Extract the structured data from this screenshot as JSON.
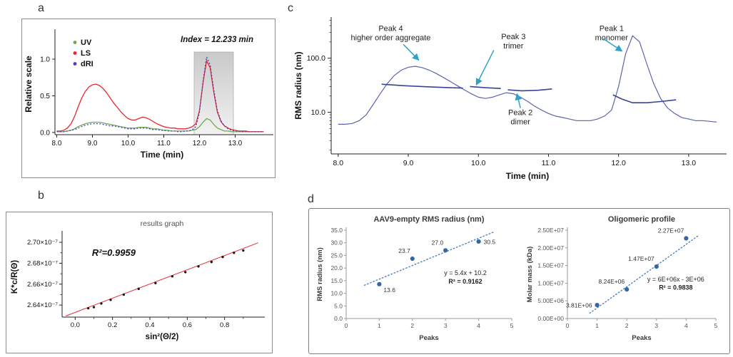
{
  "figure": {
    "panels": {
      "a": {
        "letter": "a"
      },
      "b": {
        "letter": "b"
      },
      "c": {
        "letter": "c"
      },
      "d": {
        "letter": "d"
      }
    }
  },
  "chart_data": [
    {
      "id": "a-sec-chromatogram",
      "panel": "a",
      "type": "line",
      "title": "",
      "xlabel": "Time (min)",
      "ylabel": "Relative scale",
      "xlim": [
        7.95,
        13.95
      ],
      "ylim": [
        -0.03,
        1.35
      ],
      "xticks": [
        8.0,
        9.0,
        10.0,
        11.0,
        12.0,
        13.0
      ],
      "yticks": [
        0.0,
        0.5,
        1.0
      ],
      "legend": [
        "UV",
        "LS",
        "dRI"
      ],
      "legend_position": "top-left",
      "shaded_region": {
        "x0": 11.85,
        "x1": 12.95,
        "label": "Index = 12.233 min"
      },
      "x": [
        8.0,
        8.1,
        8.2,
        8.3,
        8.4,
        8.5,
        8.6,
        8.7,
        8.8,
        8.9,
        9.0,
        9.1,
        9.2,
        9.3,
        9.4,
        9.5,
        9.6,
        9.7,
        9.8,
        9.9,
        10.0,
        10.1,
        10.2,
        10.3,
        10.4,
        10.5,
        10.6,
        10.7,
        10.8,
        10.9,
        11.0,
        11.1,
        11.2,
        11.3,
        11.4,
        11.5,
        11.6,
        11.7,
        11.8,
        11.9,
        12.0,
        12.1,
        12.2,
        12.3,
        12.4,
        12.5,
        12.6,
        12.7,
        12.8,
        12.9,
        13.0,
        13.1,
        13.2,
        13.3,
        13.4,
        13.5,
        13.6,
        13.7,
        13.8
      ],
      "series": [
        {
          "name": "UV",
          "color": "#6fa84f",
          "dash": "",
          "values": [
            0.01,
            0.01,
            0.01,
            0.02,
            0.03,
            0.05,
            0.08,
            0.1,
            0.12,
            0.13,
            0.14,
            0.14,
            0.14,
            0.13,
            0.12,
            0.11,
            0.1,
            0.09,
            0.08,
            0.07,
            0.06,
            0.06,
            0.06,
            0.07,
            0.07,
            0.07,
            0.06,
            0.05,
            0.05,
            0.04,
            0.03,
            0.03,
            0.02,
            0.02,
            0.02,
            0.02,
            0.02,
            0.02,
            0.03,
            0.04,
            0.08,
            0.14,
            0.19,
            0.17,
            0.11,
            0.06,
            0.04,
            0.02,
            0.02,
            0.01,
            0.01,
            0.01,
            0.01,
            0.01,
            0.01,
            0.01,
            0.01,
            0.01,
            0.01
          ]
        },
        {
          "name": "LS",
          "color": "#e8262c",
          "dash": "",
          "values": [
            0.02,
            0.02,
            0.03,
            0.06,
            0.12,
            0.22,
            0.35,
            0.47,
            0.56,
            0.62,
            0.65,
            0.66,
            0.64,
            0.6,
            0.54,
            0.47,
            0.4,
            0.34,
            0.28,
            0.23,
            0.19,
            0.17,
            0.17,
            0.19,
            0.21,
            0.2,
            0.18,
            0.15,
            0.12,
            0.1,
            0.08,
            0.07,
            0.06,
            0.06,
            0.05,
            0.05,
            0.05,
            0.06,
            0.08,
            0.12,
            0.3,
            0.68,
            0.98,
            0.88,
            0.55,
            0.28,
            0.15,
            0.09,
            0.06,
            0.04,
            0.03,
            0.02,
            0.02,
            0.02,
            0.01,
            0.01,
            0.01,
            0.01,
            0.01
          ]
        },
        {
          "name": "dRI",
          "color": "#4343bd",
          "dash": "2,2.4",
          "values": [
            0.01,
            0.01,
            0.01,
            0.02,
            0.03,
            0.04,
            0.06,
            0.08,
            0.1,
            0.11,
            0.12,
            0.12,
            0.12,
            0.11,
            0.1,
            0.09,
            0.09,
            0.08,
            0.07,
            0.06,
            0.05,
            0.05,
            0.05,
            0.06,
            0.06,
            0.06,
            0.05,
            0.04,
            0.04,
            0.03,
            0.03,
            0.02,
            0.02,
            0.02,
            0.01,
            0.01,
            0.02,
            0.02,
            0.04,
            0.08,
            0.28,
            0.7,
            1.03,
            0.92,
            0.58,
            0.3,
            0.16,
            0.09,
            0.05,
            0.03,
            0.02,
            0.02,
            0.01,
            0.01,
            0.01,
            0.01,
            0.01,
            0.01,
            0.01
          ]
        }
      ]
    },
    {
      "id": "b-debye-plot",
      "panel": "b",
      "type": "scatter",
      "title": "results graph",
      "xlabel": "sin²(Θ/2)",
      "ylabel": "K*c/R(Θ)",
      "annotation": "R²=0.9959",
      "annotation_pos": {
        "x": 0.09,
        "y": 2.687e-07
      },
      "xlim": [
        -0.07,
        1.0
      ],
      "ylim": [
        2.6285e-07,
        2.7055e-07
      ],
      "xticks": [
        0.0,
        0.2,
        0.4,
        0.6,
        0.8
      ],
      "minor_xticks": [
        0.1,
        0.3,
        0.5,
        0.7,
        0.9
      ],
      "yticks": [
        {
          "v": 2.64e-07,
          "label": "2.64×10⁻⁷"
        },
        {
          "v": 2.66e-07,
          "label": "2.66×10⁻⁷"
        },
        {
          "v": 2.68e-07,
          "label": "2.68×10⁻⁷"
        },
        {
          "v": 2.7e-07,
          "label": "2.70×10⁻⁷"
        }
      ],
      "minor_yticks": [
        2.65e-07,
        2.67e-07,
        2.69e-07
      ],
      "points_x": [
        0.07,
        0.1,
        0.14,
        0.19,
        0.26,
        0.34,
        0.43,
        0.52,
        0.59,
        0.66,
        0.73,
        0.79,
        0.85,
        0.9
      ],
      "points_y": [
        2.637e-07,
        2.638e-07,
        2.6415e-07,
        2.645e-07,
        2.65e-07,
        2.6555e-07,
        2.661e-07,
        2.6675e-07,
        2.6715e-07,
        2.677e-07,
        2.6812e-07,
        2.686e-07,
        2.69e-07,
        2.6922e-07
      ],
      "fit_line": {
        "x": [
          -0.05,
          0.98
        ],
        "y": [
          2.6296e-07,
          2.6996e-07
        ],
        "color": "#e8262c"
      },
      "point_color": "#1a1a1a"
    },
    {
      "id": "c-rms-radius-vs-time",
      "panel": "c",
      "type": "line",
      "title": "",
      "xlabel": "Time (min)",
      "ylabel": "RMS radius (nm)",
      "yscale": "log",
      "xlim": [
        7.9,
        13.5
      ],
      "ylim": [
        1.7,
        575
      ],
      "xticks": [
        8.0,
        9.0,
        10.0,
        11.0,
        12.0,
        13.0
      ],
      "yticks": [
        {
          "v": 10,
          "label": "10.0"
        },
        {
          "v": 100,
          "label": "100.0"
        }
      ],
      "minor_yticks": [
        2,
        3,
        4,
        5,
        6,
        7,
        8,
        9,
        20,
        30,
        40,
        50,
        60,
        70,
        80,
        90,
        200,
        300,
        400,
        500
      ],
      "x": [
        8.0,
        8.1,
        8.2,
        8.3,
        8.4,
        8.5,
        8.6,
        8.7,
        8.8,
        8.9,
        9.0,
        9.1,
        9.2,
        9.3,
        9.4,
        9.5,
        9.6,
        9.7,
        9.8,
        9.9,
        10.0,
        10.1,
        10.2,
        10.3,
        10.4,
        10.5,
        10.6,
        10.7,
        10.8,
        10.9,
        11.0,
        11.1,
        11.2,
        11.3,
        11.4,
        11.5,
        11.6,
        11.7,
        11.8,
        11.9,
        12.0,
        12.1,
        12.2,
        12.3,
        12.4,
        12.5,
        12.6,
        12.7,
        12.8,
        12.9,
        13.0,
        13.1,
        13.2,
        13.3,
        13.4
      ],
      "trace": {
        "color": "#5b63ae",
        "values": [
          6.0,
          6.0,
          6.2,
          7.0,
          9.0,
          14,
          22,
          34,
          48,
          60,
          68,
          71,
          67,
          60,
          52,
          44,
          37,
          31,
          26,
          22,
          19,
          18,
          19,
          21,
          23,
          22,
          19,
          16,
          13,
          11,
          9.5,
          8.5,
          8.0,
          7.5,
          7.0,
          7.0,
          7.0,
          7.5,
          8.5,
          11,
          30,
          120,
          260,
          200,
          80,
          34,
          18,
          12,
          9.5,
          8.0,
          7.5,
          7.0,
          7.0,
          6.8,
          6.6
        ]
      },
      "segments": [
        {
          "name": "peak4-rms-segment",
          "color": "#3a4396",
          "points": [
            [
              8.62,
              33
            ],
            [
              8.95,
              31
            ],
            [
              9.3,
              29.5
            ],
            [
              9.6,
              28.5
            ],
            [
              9.78,
              28
            ]
          ]
        },
        {
          "name": "peak3-rms-segment",
          "color": "#3a4396",
          "points": [
            [
              9.88,
              30
            ],
            [
              10.1,
              28.5
            ],
            [
              10.32,
              27.5
            ]
          ]
        },
        {
          "name": "peak2-rms-segment",
          "color": "#3a4396",
          "points": [
            [
              10.42,
              26
            ],
            [
              10.62,
              25
            ],
            [
              10.85,
              25.5
            ],
            [
              11.05,
              27
            ]
          ]
        },
        {
          "name": "peak1-rms-segment",
          "color": "#3a4396",
          "points": [
            [
              11.92,
              21
            ],
            [
              12.05,
              17.5
            ],
            [
              12.2,
              15
            ],
            [
              12.4,
              15
            ],
            [
              12.6,
              15.8
            ],
            [
              12.82,
              17
            ]
          ]
        }
      ],
      "annotations": [
        {
          "name": "peak4",
          "lines": [
            "Peak 4",
            "higher order aggregate"
          ],
          "x": 8.75,
          "y": 320,
          "arrow": [
            [
              8.93,
              180
            ],
            [
              9.15,
              92
            ]
          ],
          "color": "#2fa3c7"
        },
        {
          "name": "peak3",
          "lines": [
            "Peak 3",
            "trimer"
          ],
          "x": 10.5,
          "y": 225,
          "arrow": [
            [
              10.22,
              140
            ],
            [
              9.97,
              32
            ]
          ],
          "color": "#2fa3c7"
        },
        {
          "name": "peak1",
          "lines": [
            "Peak 1",
            "monomer"
          ],
          "x": 11.9,
          "y": 320,
          "arrow": [
            [
              11.78,
              230
            ],
            [
              12.05,
              135
            ]
          ],
          "color": "#2fa3c7"
        },
        {
          "name": "peak2",
          "lines": [
            "Peak 2",
            "dimer"
          ],
          "x": 10.6,
          "y": 8.9,
          "arrow": [
            [
              10.6,
              12
            ],
            [
              10.55,
              22
            ]
          ],
          "color": "#2fa3c7"
        }
      ]
    },
    {
      "id": "d-rms-vs-peaks",
      "panel": "d",
      "type": "scatter",
      "title": "AAV9-empty RMS radius (nm)",
      "xlabel": "Peaks",
      "ylabel": "RMS radius (nm)",
      "xlim": [
        0,
        5
      ],
      "ylim": [
        0,
        35
      ],
      "xticks": [
        0,
        1,
        2,
        3,
        4,
        5
      ],
      "yticks": [
        {
          "v": 0,
          "label": "0.0"
        },
        {
          "v": 5,
          "label": "5.0"
        },
        {
          "v": 10,
          "label": "10.0"
        },
        {
          "v": 15,
          "label": "15.0"
        },
        {
          "v": 20,
          "label": "20.0"
        },
        {
          "v": 25,
          "label": "25.0"
        },
        {
          "v": 30,
          "label": "30.0"
        },
        {
          "v": 35,
          "label": "35.0"
        }
      ],
      "points": [
        {
          "x": 1,
          "y": 13.6,
          "label": "13.6",
          "label_pos": "right-below"
        },
        {
          "x": 2,
          "y": 23.7,
          "label": "23.7",
          "label_pos": "above-left"
        },
        {
          "x": 3,
          "y": 27.0,
          "label": "27.0",
          "label_pos": "above-left"
        },
        {
          "x": 4,
          "y": 30.5,
          "label": "30.5",
          "label_pos": "right"
        }
      ],
      "trendline": {
        "slope": 5.4,
        "intercept": 10.2,
        "x0": 0.55,
        "x1": 4.45,
        "color": "#4f81bd"
      },
      "equation_lines": [
        "y = 5.4x + 10.2",
        "R² = 0.9162"
      ],
      "equation_pos": {
        "x": 3.6,
        "y1": 17.2,
        "y2": 13.9
      },
      "point_color": "#3567a3"
    },
    {
      "id": "d-molar-mass-vs-peaks",
      "panel": "d",
      "type": "scatter",
      "title": "Oligomeric profile",
      "xlabel": "Peaks",
      "ylabel": "Molar mass (kDa)",
      "xlim": [
        0,
        5
      ],
      "ylim": [
        0,
        25000000.0
      ],
      "xticks": [
        0,
        1,
        2,
        3,
        4,
        5
      ],
      "yticks": [
        {
          "v": 0,
          "label": "0.00E+00"
        },
        {
          "v": 5000000.0,
          "label": "5.00E+06"
        },
        {
          "v": 10000000.0,
          "label": "1.00E+07"
        },
        {
          "v": 15000000.0,
          "label": "1.50E+07"
        },
        {
          "v": 20000000.0,
          "label": "2.00E+07"
        },
        {
          "v": 25000000.0,
          "label": "2.50E+07"
        }
      ],
      "points": [
        {
          "x": 1,
          "y": 3810000.0,
          "label": "3.81E+06",
          "label_pos": "left"
        },
        {
          "x": 2,
          "y": 8240000.0,
          "label": "8.24E+06",
          "label_pos": "above-left"
        },
        {
          "x": 3,
          "y": 14700000.0,
          "label": "1.47E+07",
          "label_pos": "above-left"
        },
        {
          "x": 4,
          "y": 22700000.0,
          "label": "2.27E+07",
          "label_pos": "above-left"
        }
      ],
      "trendline": {
        "slope": 6000000.0,
        "intercept": -3000000.0,
        "x0": 0.75,
        "x1": 4.4,
        "color": "#4f81bd"
      },
      "equation_lines": [
        "y = 6E+06x - 3E+06",
        "R² = 0.9838"
      ],
      "equation_pos": {
        "x": 3.65,
        "y1": 10500000.0,
        "y2": 8200000.0
      },
      "point_color": "#3567a3"
    }
  ]
}
